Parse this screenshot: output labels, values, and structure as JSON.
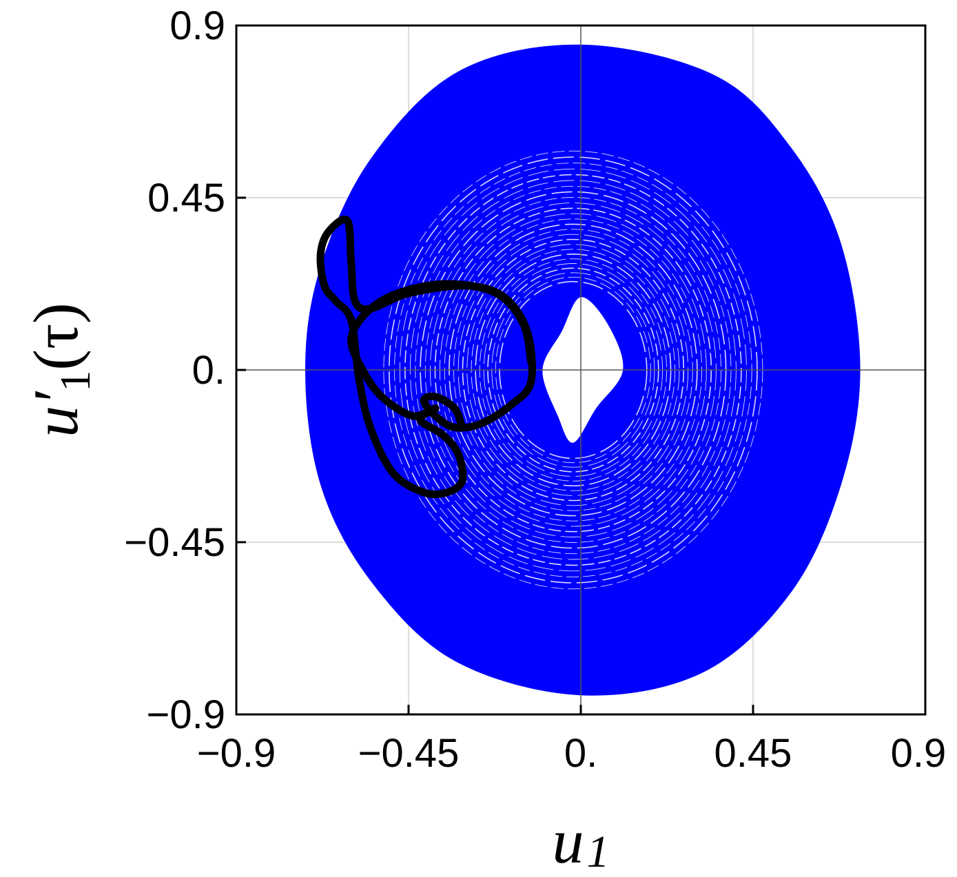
{
  "chart_data": {
    "type": "line",
    "xlabel": "u1",
    "ylabel_main": "u′",
    "ylabel_sub": "1",
    "ylabel_arg": "(τ)",
    "xlim": [
      -0.9,
      0.9
    ],
    "ylim": [
      -0.9,
      0.9
    ],
    "x_ticks": [
      -0.9,
      -0.45,
      0,
      0.45,
      0.9
    ],
    "y_ticks": [
      -0.9,
      -0.45,
      0,
      0.45,
      0.9
    ],
    "x_tick_labels": [
      "−0.9",
      "−0.45",
      "0.",
      "0.45",
      "0.9"
    ],
    "y_tick_labels": [
      "−0.9",
      "−0.45",
      "0.",
      "0.45",
      "0.9"
    ],
    "grid": true,
    "colors": {
      "region": "#0000ff",
      "trajectory": "#000000"
    },
    "series": [
      {
        "kind": "filled-annulus",
        "color": "#0000ff",
        "outer_boundary": [
          [
            0.73,
            0.0
          ],
          [
            0.68,
            0.33
          ],
          [
            0.55,
            0.58
          ],
          [
            0.35,
            0.77
          ],
          [
            0.0,
            0.85
          ],
          [
            -0.32,
            0.78
          ],
          [
            -0.55,
            0.55
          ],
          [
            -0.68,
            0.27
          ],
          [
            -0.72,
            0.0
          ],
          [
            -0.68,
            -0.3
          ],
          [
            -0.55,
            -0.55
          ],
          [
            -0.33,
            -0.76
          ],
          [
            0.0,
            -0.85
          ],
          [
            0.32,
            -0.79
          ],
          [
            0.55,
            -0.58
          ],
          [
            0.68,
            -0.3
          ]
        ],
        "inner_hole": [
          [
            0.11,
            0.0
          ],
          [
            0.07,
            0.12
          ],
          [
            0.0,
            0.19
          ],
          [
            -0.05,
            0.1
          ],
          [
            -0.1,
            0.0
          ],
          [
            -0.06,
            -0.12
          ],
          [
            -0.02,
            -0.19
          ],
          [
            0.04,
            -0.1
          ]
        ]
      },
      {
        "kind": "trajectory",
        "color": "#000000",
        "points": [
          [
            -0.13,
            0.02
          ],
          [
            -0.15,
            0.12
          ],
          [
            -0.22,
            0.2
          ],
          [
            -0.35,
            0.225
          ],
          [
            -0.48,
            0.2
          ],
          [
            -0.56,
            0.15
          ],
          [
            -0.6,
            0.08
          ],
          [
            -0.57,
            0.0
          ],
          [
            -0.52,
            -0.07
          ],
          [
            -0.44,
            -0.12
          ],
          [
            -0.38,
            -0.1
          ],
          [
            -0.42,
            -0.13
          ],
          [
            -0.36,
            -0.17
          ],
          [
            -0.32,
            -0.22
          ],
          [
            -0.31,
            -0.29
          ],
          [
            -0.35,
            -0.32
          ],
          [
            -0.41,
            -0.32
          ],
          [
            -0.49,
            -0.27
          ],
          [
            -0.55,
            -0.15
          ],
          [
            -0.58,
            -0.02
          ],
          [
            -0.6,
            0.13
          ],
          [
            -0.64,
            0.18
          ],
          [
            -0.67,
            0.22
          ],
          [
            -0.68,
            0.3
          ],
          [
            -0.66,
            0.36
          ],
          [
            -0.61,
            0.39
          ],
          [
            -0.6,
            0.28
          ],
          [
            -0.59,
            0.18
          ],
          [
            -0.55,
            0.16
          ],
          [
            -0.45,
            0.2
          ],
          [
            -0.3,
            0.22
          ],
          [
            -0.2,
            0.19
          ],
          [
            -0.14,
            0.1
          ],
          [
            -0.13,
            -0.03
          ],
          [
            -0.18,
            -0.09
          ],
          [
            -0.26,
            -0.14
          ],
          [
            -0.33,
            -0.15
          ],
          [
            -0.38,
            -0.12
          ],
          [
            -0.41,
            -0.08
          ],
          [
            -0.38,
            -0.07
          ],
          [
            -0.33,
            -0.1
          ],
          [
            -0.31,
            -0.15
          ]
        ]
      }
    ]
  }
}
